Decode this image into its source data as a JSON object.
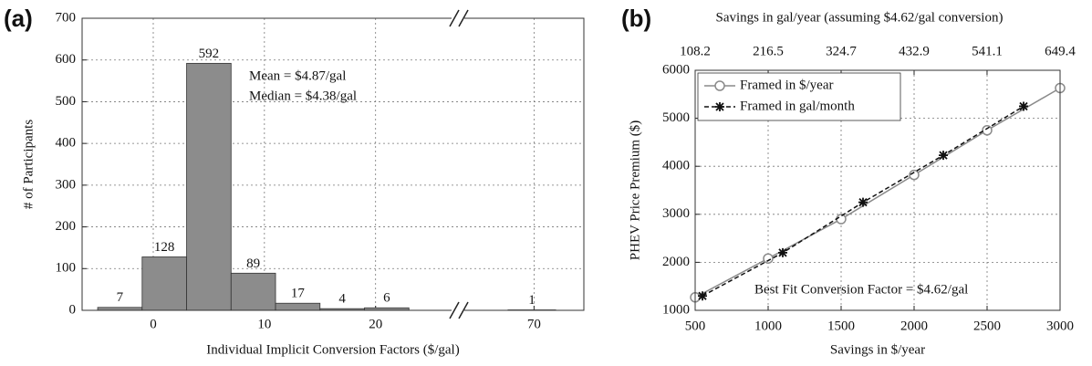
{
  "chart_data": [
    {
      "type": "histogram",
      "panel": "(a)",
      "xlabel": "Individual Implicit Conversion Factors ($/gal)",
      "ylabel": "# of Participants",
      "bins": [
        -5,
        -1,
        3,
        7,
        11,
        15,
        19,
        23
      ],
      "values": [
        7,
        128,
        592,
        89,
        17,
        4,
        6
      ],
      "break_bins": [
        67.6,
        72
      ],
      "break_values": [
        1
      ],
      "xlim": [
        -6.4,
        27
      ],
      "xticks": [
        0,
        10,
        20
      ],
      "break_xlim": [
        63.4,
        74.6
      ],
      "break_xticks": [
        70
      ],
      "ylim": [
        0,
        700
      ],
      "yticks": [
        0,
        100,
        200,
        300,
        400,
        500,
        600,
        700
      ],
      "color": "#8c8c8c",
      "grid": true,
      "annotations": [
        "Mean = $4.87/gal",
        "Median = $4.38/gal"
      ]
    },
    {
      "type": "line",
      "panel": "(b)",
      "xlabel": "Savings in $/year",
      "ylabel": "PHEV Price Premium ($)",
      "x2label": "Savings in gal/year (assuming $4.62/gal conversion)",
      "xlim": [
        500,
        3000
      ],
      "xticks": [
        500,
        1000,
        1500,
        2000,
        2500,
        3000
      ],
      "x2lim": [
        108.2,
        649.4
      ],
      "x2ticks": [
        108.2,
        216.5,
        324.7,
        432.9,
        541.1,
        649.4
      ],
      "ylim": [
        1000,
        6000
      ],
      "yticks": [
        1000,
        2000,
        3000,
        4000,
        5000,
        6000
      ],
      "grid": true,
      "legend": "upper left",
      "series": [
        {
          "name": "Framed in $/year",
          "color": "#8a8a8a",
          "marker": "circle",
          "dash": false,
          "x": [
            500,
            1000,
            1500,
            2000,
            2500,
            3000
          ],
          "values": [
            1270,
            2080,
            2900,
            3820,
            4750,
            5630
          ]
        },
        {
          "name": "Framed in gal/month",
          "color": "#111111",
          "marker": "star",
          "dash": true,
          "x": [
            550,
            1100,
            1650,
            2200,
            2750
          ],
          "values": [
            1300,
            2200,
            3250,
            4230,
            5250
          ]
        }
      ],
      "annotations": [
        "Best Fit Conversion Factor = $4.62/gal"
      ]
    }
  ]
}
